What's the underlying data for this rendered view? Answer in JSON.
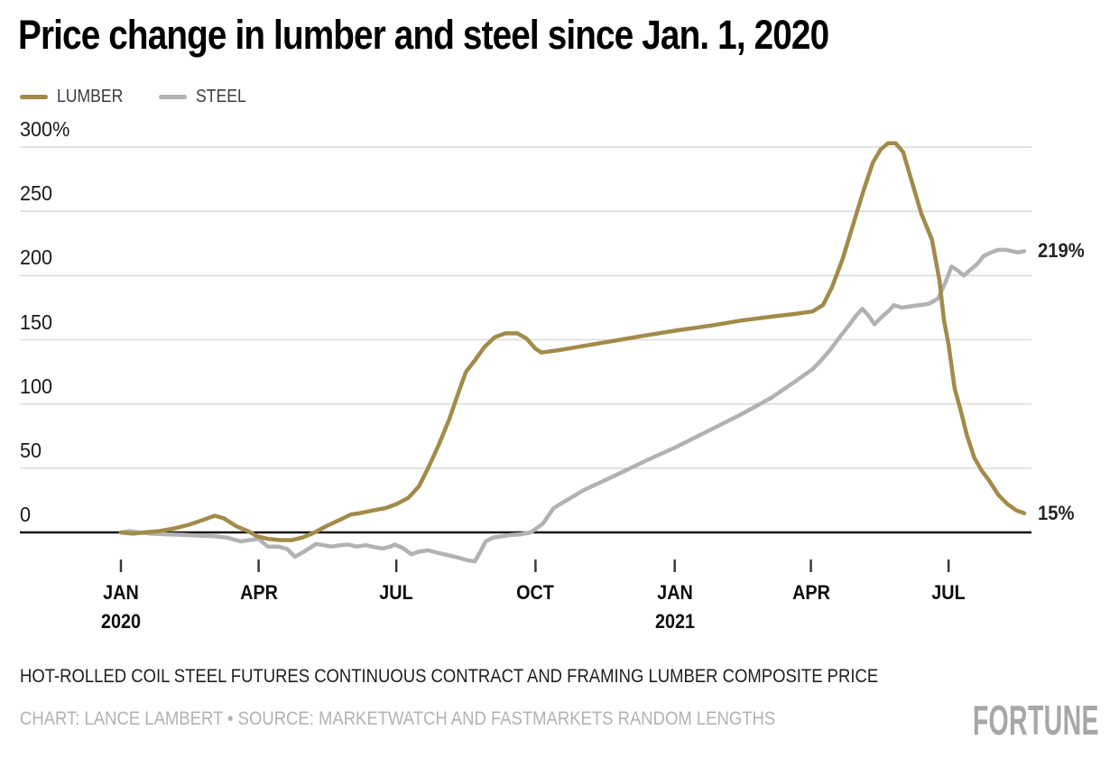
{
  "header": {
    "title": "Price change in lumber and steel since Jan. 1, 2020"
  },
  "legend": [
    {
      "label": "LUMBER",
      "color": "#a28b4a"
    },
    {
      "label": "STEEL",
      "color": "#b2b2b2"
    }
  ],
  "chart_data": {
    "type": "line",
    "title": "Price change in lumber and steel since Jan. 1, 2020",
    "xlabel": "",
    "ylabel": "",
    "grid": true,
    "legend_position": "top-left",
    "points_format": "[days_since_Jan_1_2020, percent_change]",
    "x_axis": {
      "tick_labels": [
        "JAN",
        "APR",
        "JUL",
        "OCT",
        "JAN",
        "APR",
        "JUL"
      ],
      "tick_days": [
        0,
        91,
        182,
        274,
        366,
        456,
        547
      ],
      "year_labels": [
        {
          "text": "2020",
          "day": 0
        },
        {
          "text": "2021",
          "day": 366
        }
      ],
      "domain_days": [
        0,
        597
      ]
    },
    "y_axis": {
      "ticks": [
        {
          "label": "300%",
          "value": 300
        },
        {
          "label": "250",
          "value": 250
        },
        {
          "label": "200",
          "value": 200
        },
        {
          "label": "150",
          "value": 150
        },
        {
          "label": "100",
          "value": 100
        },
        {
          "label": "50",
          "value": 50
        },
        {
          "label": "0",
          "value": 0
        }
      ],
      "ylim": [
        -30,
        305
      ]
    },
    "series": [
      {
        "name": "STEEL",
        "color": "#b2b2b2",
        "end_label": "219%",
        "end_value": 219,
        "points": [
          [
            0,
            0
          ],
          [
            6,
            1
          ],
          [
            12,
            0
          ],
          [
            20,
            -1
          ],
          [
            30,
            -1.5
          ],
          [
            42,
            -2
          ],
          [
            52,
            -2.5
          ],
          [
            62,
            -3
          ],
          [
            70,
            -4
          ],
          [
            79,
            -7
          ],
          [
            85,
            -6
          ],
          [
            91,
            -5
          ],
          [
            97,
            -11
          ],
          [
            104,
            -11
          ],
          [
            110,
            -13
          ],
          [
            115,
            -19
          ],
          [
            121,
            -15
          ],
          [
            125,
            -12
          ],
          [
            129,
            -9
          ],
          [
            134,
            -10
          ],
          [
            139,
            -11
          ],
          [
            145,
            -10
          ],
          [
            150,
            -9.5
          ],
          [
            156,
            -11
          ],
          [
            162,
            -10
          ],
          [
            168,
            -11.5
          ],
          [
            173,
            -12.5
          ],
          [
            178,
            -11
          ],
          [
            181,
            -9.5
          ],
          [
            186,
            -12
          ],
          [
            192,
            -17
          ],
          [
            197,
            -15
          ],
          [
            203,
            -14
          ],
          [
            210,
            -16
          ],
          [
            217,
            -18
          ],
          [
            224,
            -20
          ],
          [
            230,
            -22
          ],
          [
            234,
            -22.5
          ],
          [
            238,
            -14
          ],
          [
            241,
            -7
          ],
          [
            246,
            -4
          ],
          [
            252,
            -3
          ],
          [
            258,
            -2
          ],
          [
            264,
            -1.5
          ],
          [
            271,
            0
          ],
          [
            279,
            7
          ],
          [
            286,
            19
          ],
          [
            306,
            33
          ],
          [
            326,
            44
          ],
          [
            349,
            57
          ],
          [
            366,
            66
          ],
          [
            388,
            79
          ],
          [
            410,
            92
          ],
          [
            430,
            105
          ],
          [
            445,
            117
          ],
          [
            457,
            127
          ],
          [
            462,
            133
          ],
          [
            468,
            141
          ],
          [
            475,
            152
          ],
          [
            481,
            161
          ],
          [
            486,
            169
          ],
          [
            490,
            174
          ],
          [
            494,
            169
          ],
          [
            498,
            162
          ],
          [
            503,
            168
          ],
          [
            507,
            172
          ],
          [
            511,
            177
          ],
          [
            516,
            175
          ],
          [
            522,
            176
          ],
          [
            528,
            177
          ],
          [
            534,
            178
          ],
          [
            540,
            182
          ],
          [
            545,
            195
          ],
          [
            549,
            207
          ],
          [
            553,
            204
          ],
          [
            557,
            200
          ],
          [
            561,
            204
          ],
          [
            566,
            209
          ],
          [
            570,
            215
          ],
          [
            575,
            218
          ],
          [
            580,
            220
          ],
          [
            585,
            220
          ],
          [
            589,
            219
          ],
          [
            593,
            218
          ],
          [
            597,
            219
          ]
        ]
      },
      {
        "name": "LUMBER",
        "color": "#a28b4a",
        "end_label": "15%",
        "end_value": 15,
        "points": [
          [
            0,
            0
          ],
          [
            8,
            -1
          ],
          [
            15,
            0
          ],
          [
            25,
            1
          ],
          [
            35,
            3
          ],
          [
            45,
            6
          ],
          [
            55,
            10
          ],
          [
            62,
            13
          ],
          [
            68,
            11
          ],
          [
            76,
            5
          ],
          [
            84,
            1
          ],
          [
            90,
            -3
          ],
          [
            97,
            -5
          ],
          [
            105,
            -6
          ],
          [
            113,
            -6
          ],
          [
            120,
            -4
          ],
          [
            128,
            0
          ],
          [
            136,
            5
          ],
          [
            145,
            10
          ],
          [
            152,
            14
          ],
          [
            158,
            15
          ],
          [
            166,
            17
          ],
          [
            175,
            19
          ],
          [
            182,
            22
          ],
          [
            190,
            27
          ],
          [
            197,
            36
          ],
          [
            203,
            50
          ],
          [
            210,
            68
          ],
          [
            217,
            88
          ],
          [
            224,
            112
          ],
          [
            228,
            125
          ],
          [
            234,
            134
          ],
          [
            240,
            144
          ],
          [
            247,
            152
          ],
          [
            254,
            155
          ],
          [
            262,
            155
          ],
          [
            268,
            151
          ],
          [
            274,
            143
          ],
          [
            278,
            140
          ],
          [
            290,
            142
          ],
          [
            310,
            146
          ],
          [
            330,
            150
          ],
          [
            350,
            154
          ],
          [
            366,
            157
          ],
          [
            390,
            161
          ],
          [
            410,
            165
          ],
          [
            430,
            168
          ],
          [
            445,
            170
          ],
          [
            457,
            172
          ],
          [
            464,
            177
          ],
          [
            470,
            191
          ],
          [
            477,
            213
          ],
          [
            484,
            240
          ],
          [
            491,
            267
          ],
          [
            497,
            288
          ],
          [
            502,
            298
          ],
          [
            507,
            303
          ],
          [
            512,
            303
          ],
          [
            517,
            296
          ],
          [
            523,
            272
          ],
          [
            529,
            248
          ],
          [
            536,
            228
          ],
          [
            541,
            196
          ],
          [
            544,
            165
          ],
          [
            547,
            146
          ],
          [
            551,
            112
          ],
          [
            555,
            95
          ],
          [
            559,
            76
          ],
          [
            564,
            58
          ],
          [
            569,
            48
          ],
          [
            574,
            40
          ],
          [
            580,
            29
          ],
          [
            586,
            22
          ],
          [
            592,
            17
          ],
          [
            597,
            15
          ]
        ]
      }
    ]
  },
  "footer": {
    "note": "HOT-ROLLED COIL STEEL FUTURES CONTINUOUS CONTRACT AND FRAMING LUMBER COMPOSITE PRICE",
    "credit": "CHART: LANCE LAMBERT • SOURCE: MARKETWATCH AND FASTMARKETS RANDOM LENGTHS",
    "brand": "FORTUNE"
  }
}
